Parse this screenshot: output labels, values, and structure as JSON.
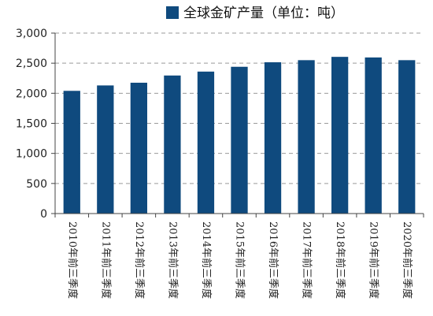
{
  "chart_data": {
    "type": "bar",
    "categories": [
      "2010年前三季度",
      "2011年前三季度",
      "2012年前三季度",
      "2013年前三季度",
      "2014年前三季度",
      "2015年前三季度",
      "2016年前三季度",
      "2017年前三季度",
      "2018年前三季度",
      "2019年前三季度",
      "2020年前三季度"
    ],
    "series": [
      {
        "name": "全球金矿产量（单位：吨）",
        "values": [
          2040,
          2130,
          2175,
          2295,
          2360,
          2440,
          2515,
          2550,
          2605,
          2595,
          2550
        ]
      }
    ],
    "ylim": [
      0,
      3000
    ],
    "yticks": [
      0,
      500,
      1000,
      1500,
      2000,
      2500,
      3000
    ],
    "ytick_labels": [
      "0",
      "500",
      "1,000",
      "1,500",
      "2,000",
      "2,500",
      "3,000"
    ],
    "grid": true,
    "legend_position": "top",
    "bar_color": "#0f4a7e",
    "grid_color": "#9a9a9a"
  }
}
